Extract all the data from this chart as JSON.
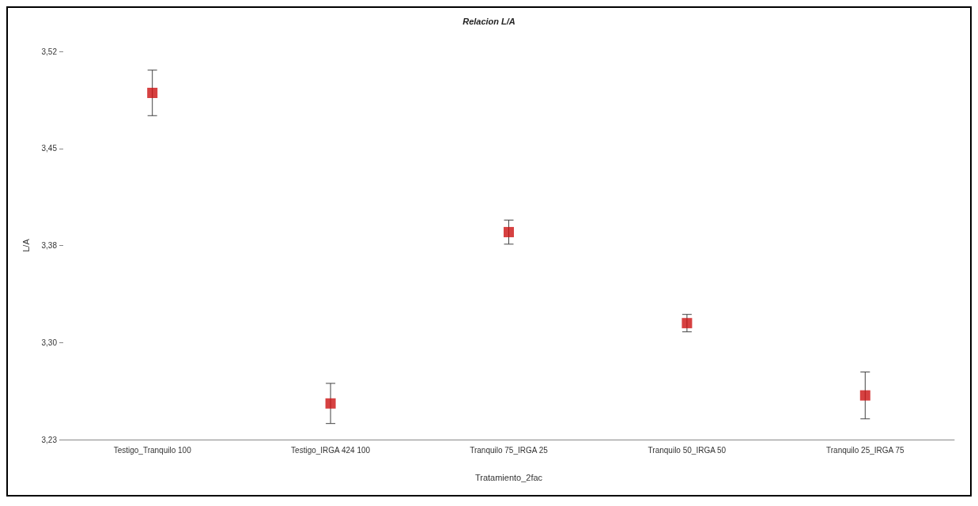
{
  "chart_data": {
    "type": "scatter",
    "title": "Relacion L/A",
    "xlabel": "Tratamiento_2fac",
    "ylabel": "L/A",
    "categories": [
      "Testigo_Tranquilo 100",
      "Testigo_IRGA 424 100",
      "Tranquilo 75_IRGA 25",
      "Tranquilo 50_IRGA 50",
      "Tranquilo 25_IRGA 75"
    ],
    "values": [
      3.489,
      3.257,
      3.385,
      3.317,
      3.263
    ],
    "errors": [
      0.017,
      0.015,
      0.009,
      0.0065,
      0.0175
    ],
    "color": "#cc1111",
    "marker": "square",
    "grid": false,
    "ylim": [
      3.23,
      3.52
    ],
    "yticks": [
      {
        "value": 3.23,
        "label": "3,23"
      },
      {
        "value": 3.3025,
        "label": "3,30"
      },
      {
        "value": 3.375,
        "label": "3,38"
      },
      {
        "value": 3.4475,
        "label": "3,45"
      },
      {
        "value": 3.52,
        "label": "3,52"
      }
    ]
  }
}
